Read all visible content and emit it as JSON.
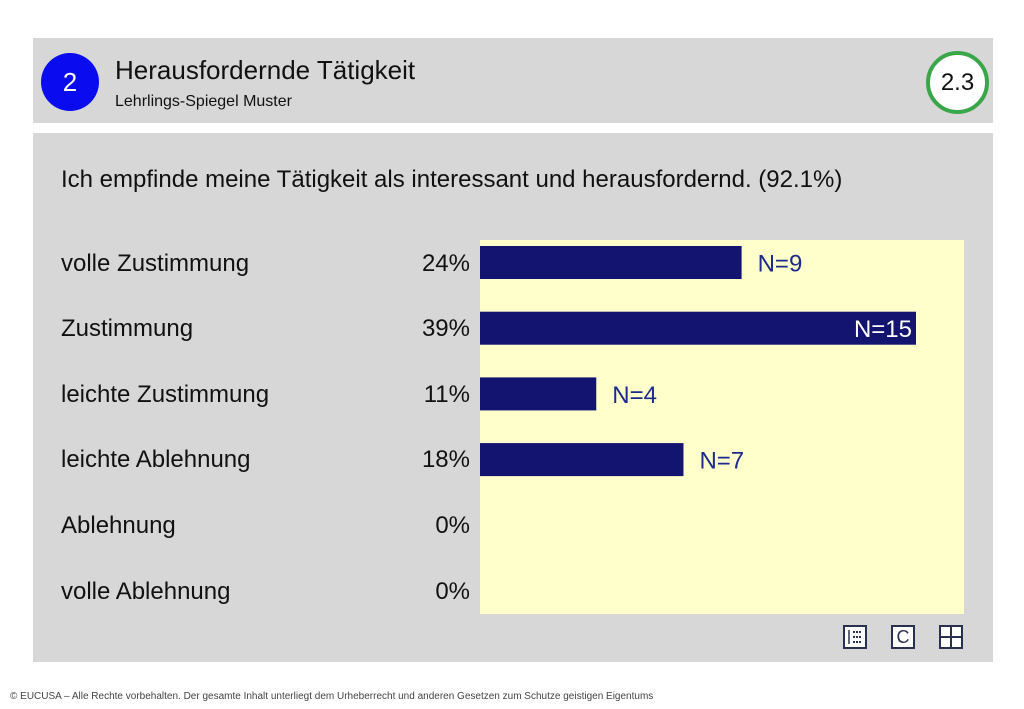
{
  "header": {
    "section_number": "2",
    "title": "Herausfordernde Tätigkeit",
    "subtitle": "Lehrlings-Spiegel Muster",
    "page_number": "2.3"
  },
  "chart_data": {
    "type": "bar",
    "orientation": "horizontal",
    "title": "Ich empfinde meine Tätigkeit als interessant und herausfordernd. (92.1%)",
    "categories": [
      "volle Zustimmung",
      "Zustimmung",
      "leichte Zustimmung",
      "leichte Ablehnung",
      "Ablehnung",
      "volle Ablehnung"
    ],
    "percent_labels": [
      "24%",
      "39%",
      "11%",
      "18%",
      "0%",
      "0%"
    ],
    "values": [
      9,
      15,
      4,
      7,
      0,
      0
    ],
    "value_labels": [
      "N=9",
      "N=15",
      "N=4",
      "N=7",
      "",
      ""
    ],
    "xlim": [
      0,
      15
    ],
    "grid": false
  },
  "colors": {
    "bar": "#121470",
    "plot_background": "#ffffcc",
    "panel_background": "#d7d7d7",
    "section_badge": "#0b0bf0",
    "page_badge_border": "#3aa64a",
    "value_label_inside": "#ffffff",
    "value_label_outside": "#1e2a8c"
  },
  "toolbar": {
    "icons": [
      "list-icon",
      "copyright-c-icon",
      "grid-icon"
    ],
    "c_label": "C"
  },
  "footer": {
    "text": "© EUCUSA – Alle Rechte vorbehalten. Der gesamte Inhalt unterliegt dem Urheberrecht und anderen Gesetzen zum Schutze geistigen Eigentums"
  }
}
